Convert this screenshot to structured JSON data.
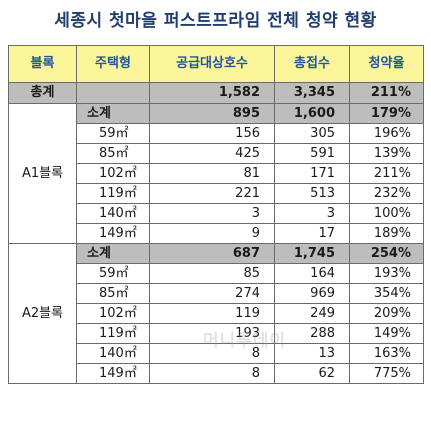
{
  "title": "세종시 첫마을 퍼스트프라임 전체 청약 현황",
  "headers": [
    "블록",
    "주택형",
    "공급대상호수",
    "총접수",
    "청약율"
  ],
  "total": {
    "label": "총계",
    "supply": "1,582",
    "applied": "3,345",
    "rate": "211%"
  },
  "blocks": [
    {
      "name": "A1블록",
      "subtotal": {
        "label": "소계",
        "supply": "895",
        "applied": "1,600",
        "rate": "179%"
      },
      "rows": [
        {
          "type": "59㎡",
          "supply": "156",
          "applied": "305",
          "rate": "196%"
        },
        {
          "type": "85㎡",
          "supply": "425",
          "applied": "591",
          "rate": "139%"
        },
        {
          "type": "102㎡",
          "supply": "81",
          "applied": "171",
          "rate": "211%"
        },
        {
          "type": "119㎡",
          "supply": "221",
          "applied": "513",
          "rate": "232%"
        },
        {
          "type": "140㎡",
          "supply": "3",
          "applied": "3",
          "rate": "100%"
        },
        {
          "type": "149㎡",
          "supply": "9",
          "applied": "17",
          "rate": "189%"
        }
      ]
    },
    {
      "name": "A2블록",
      "subtotal": {
        "label": "소계",
        "supply": "687",
        "applied": "1,745",
        "rate": "254%"
      },
      "rows": [
        {
          "type": "59㎡",
          "supply": "85",
          "applied": "164",
          "rate": "193%"
        },
        {
          "type": "85㎡",
          "supply": "274",
          "applied": "969",
          "rate": "354%"
        },
        {
          "type": "102㎡",
          "supply": "119",
          "applied": "249",
          "rate": "209%"
        },
        {
          "type": "119㎡",
          "supply": "193",
          "applied": "288",
          "rate": "149%"
        },
        {
          "type": "140㎡",
          "supply": "8",
          "applied": "13",
          "rate": "163%"
        },
        {
          "type": "149㎡",
          "supply": "8",
          "applied": "62",
          "rate": "775%"
        }
      ]
    }
  ],
  "watermark": "머니투데이"
}
